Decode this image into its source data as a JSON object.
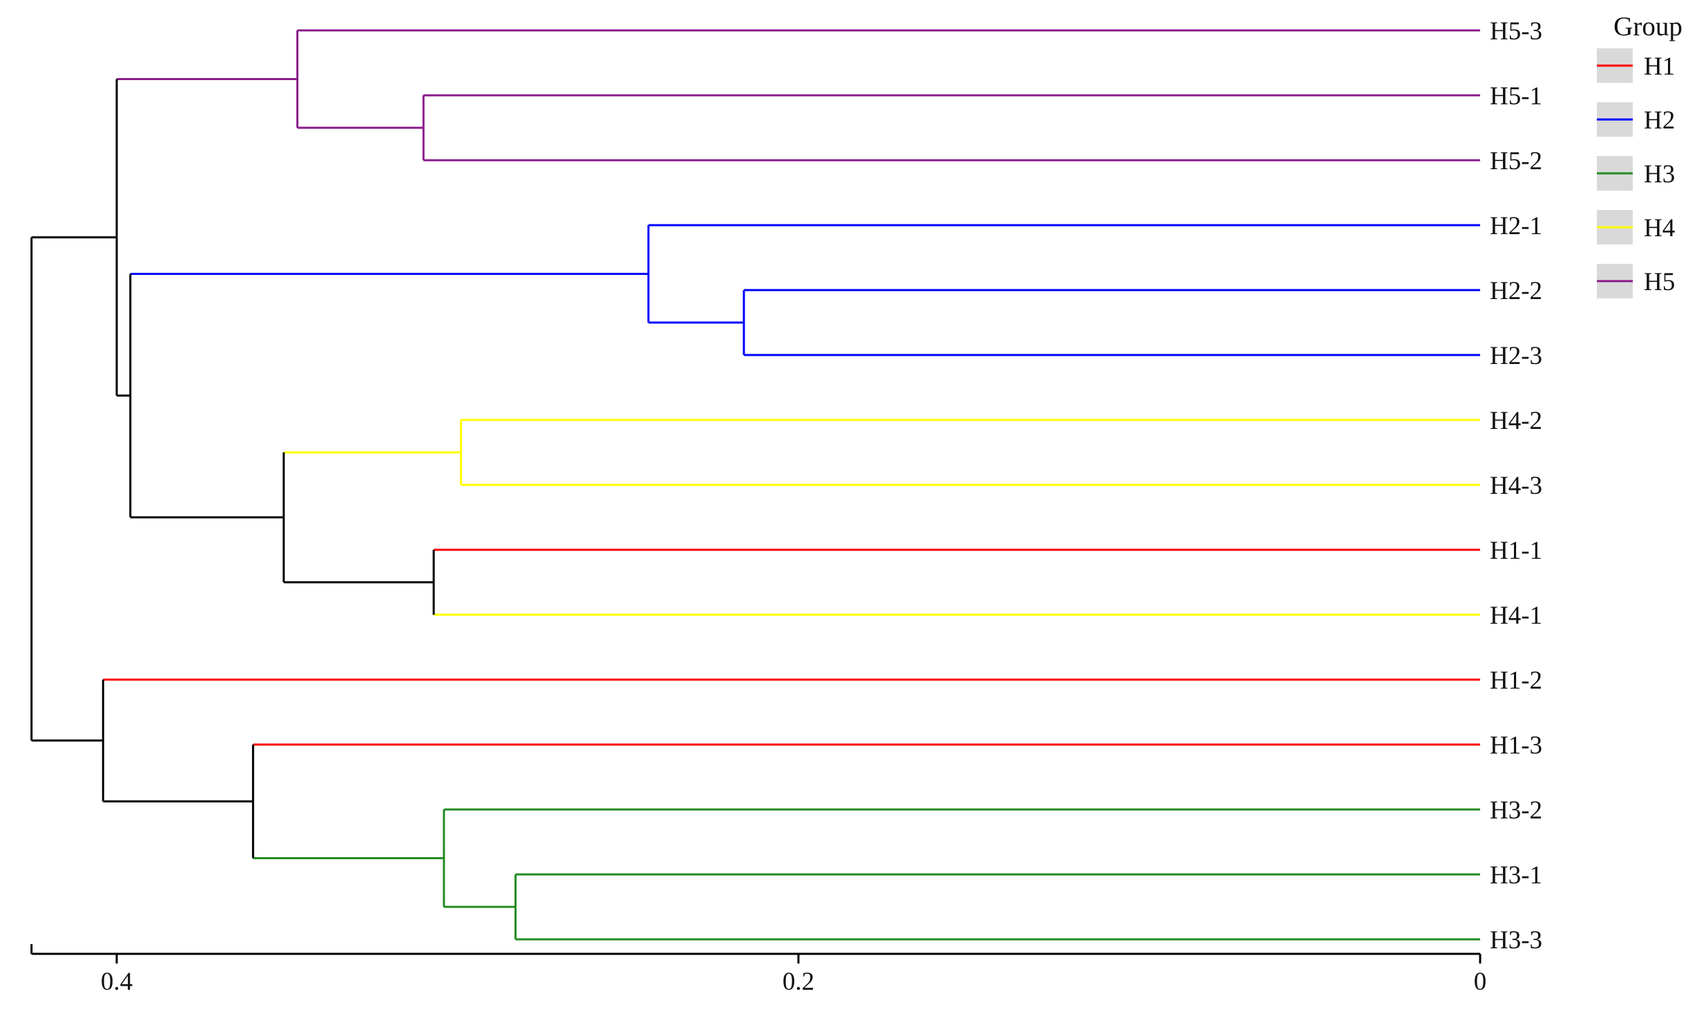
{
  "chart_data": {
    "type": "dendrogram",
    "orientation": "horizontal, root at left, leaves at right",
    "axis": {
      "ticks": [
        0.4,
        0.2,
        0
      ],
      "tick_labels": [
        "0.4",
        "0.2",
        "0"
      ],
      "range": [
        0.425,
        0
      ]
    },
    "leaves": [
      {
        "label": "H5-3",
        "group": "H5"
      },
      {
        "label": "H5-1",
        "group": "H5"
      },
      {
        "label": "H5-2",
        "group": "H5"
      },
      {
        "label": "H2-1",
        "group": "H2"
      },
      {
        "label": "H2-2",
        "group": "H2"
      },
      {
        "label": "H2-3",
        "group": "H2"
      },
      {
        "label": "H4-2",
        "group": "H4"
      },
      {
        "label": "H4-3",
        "group": "H4"
      },
      {
        "label": "H1-1",
        "group": "H1"
      },
      {
        "label": "H4-1",
        "group": "H4"
      },
      {
        "label": "H1-2",
        "group": "H1"
      },
      {
        "label": "H1-3",
        "group": "H1"
      },
      {
        "label": "H3-2",
        "group": "H3"
      },
      {
        "label": "H3-1",
        "group": "H3"
      },
      {
        "label": "H3-3",
        "group": "H3"
      }
    ],
    "merges": [
      {
        "left": "H5-1",
        "right": "H5-2",
        "height": 0.31,
        "color": "#8B1A8B"
      },
      {
        "left": "H5-3",
        "right": "m0",
        "height": 0.347,
        "color": "#8B1A8B"
      },
      {
        "left": "H2-2",
        "right": "H2-3",
        "height": 0.216,
        "color": "#0000FF"
      },
      {
        "left": "H2-1",
        "right": "m2",
        "height": 0.244,
        "color": "#0000FF"
      },
      {
        "left": "H4-2",
        "right": "H4-3",
        "height": 0.299,
        "color": "#FFFF00"
      },
      {
        "left": "H1-1",
        "right": "H4-1",
        "height": 0.307,
        "color": "#000000"
      },
      {
        "left": "m4",
        "right": "m5",
        "height": 0.351,
        "color": "#000000"
      },
      {
        "left": "m3",
        "right": "m6",
        "height": 0.396,
        "color": "#000000"
      },
      {
        "left": "m1",
        "right": "m7",
        "height": 0.4,
        "color": "#000000"
      },
      {
        "left": "H3-1",
        "right": "H3-3",
        "height": 0.283,
        "color": "#228B22"
      },
      {
        "left": "H3-2",
        "right": "m9",
        "height": 0.304,
        "color": "#228B22"
      },
      {
        "left": "H1-3",
        "right": "m10",
        "height": 0.36,
        "color": "#000000"
      },
      {
        "left": "H1-2",
        "right": "m11",
        "height": 0.404,
        "color": "#000000"
      },
      {
        "left": "m8",
        "right": "m12",
        "height": 0.425,
        "color": "#000000"
      }
    ],
    "legend": {
      "title": "Group",
      "items": [
        {
          "label": "H1",
          "color": "#FF0000"
        },
        {
          "label": "H2",
          "color": "#0000FF"
        },
        {
          "label": "H3",
          "color": "#228B22"
        },
        {
          "label": "H4",
          "color": "#FFFF00"
        },
        {
          "label": "H5",
          "color": "#8B1A8B"
        }
      ]
    }
  }
}
